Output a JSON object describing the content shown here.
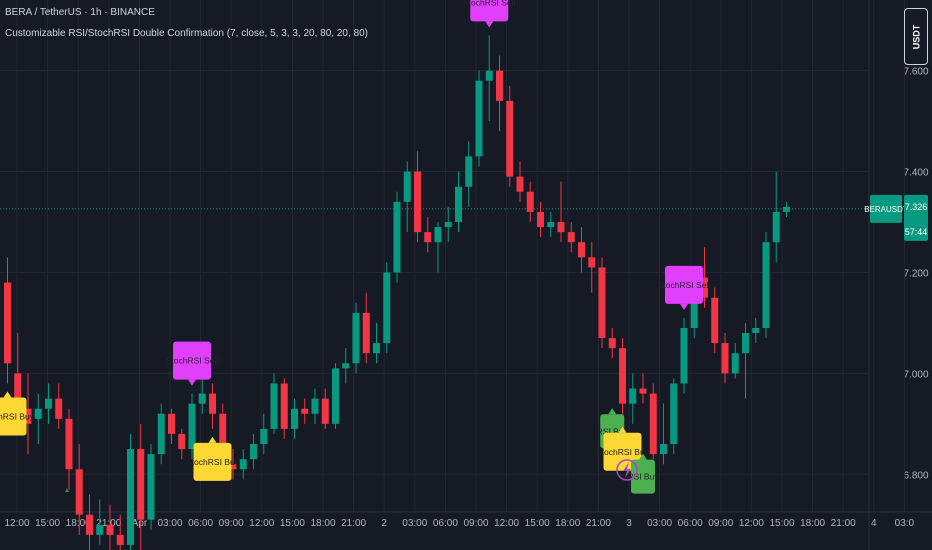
{
  "header": {
    "symbol_line": "BERA / TetherUS · 1h · BINANCE",
    "indicator_line": "Customizable RSI/StochRSI Double Confirmation (7, close, 5, 3, 3, 20, 80, 20, 80)"
  },
  "currency_button": "USDT",
  "price_label": {
    "symbol": "BERAUSDT",
    "price": "7.326",
    "countdown": "57:44"
  },
  "colors": {
    "background": "#161a25",
    "grid": "#232733",
    "up": "#089981",
    "down": "#f23645",
    "sell_label": "#e040fb",
    "stoch_buy_label": "#fdd835",
    "rsi_buy_label": "#4caf50",
    "axis_text": "#b2b5be"
  },
  "chart_data": {
    "type": "candlestick",
    "ylim": [
      6.65,
      7.74
    ],
    "y_ticks": [
      "7.600",
      "7.400",
      "7.200",
      "7.000",
      "6.800"
    ],
    "y_tick_values": [
      7.6,
      7.4,
      7.2,
      7.0,
      6.8
    ],
    "x_ticks": [
      "12:00",
      "15:00",
      "18:00",
      "21:00",
      "Apr",
      "03:00",
      "06:00",
      "09:00",
      "12:00",
      "15:00",
      "18:00",
      "21:00",
      "2",
      "03:00",
      "06:00",
      "09:00",
      "12:00",
      "15:00",
      "18:00",
      "21:00",
      "3",
      "03:00",
      "06:00",
      "09:00",
      "12:00",
      "15:00",
      "18:00",
      "21:00",
      "4",
      "03:0"
    ],
    "first_x_tick_index": 1,
    "current_price": 7.326,
    "candles": [
      {
        "o": 7.18,
        "h": 7.23,
        "l": 6.98,
        "c": 7.02
      },
      {
        "o": 7.0,
        "h": 7.08,
        "l": 6.9,
        "c": 6.93
      },
      {
        "o": 6.93,
        "h": 7.0,
        "l": 6.84,
        "c": 6.9
      },
      {
        "o": 6.91,
        "h": 6.96,
        "l": 6.86,
        "c": 6.93
      },
      {
        "o": 6.93,
        "h": 6.98,
        "l": 6.9,
        "c": 6.95
      },
      {
        "o": 6.95,
        "h": 6.98,
        "l": 6.89,
        "c": 6.91
      },
      {
        "o": 6.91,
        "h": 6.93,
        "l": 6.77,
        "c": 6.81
      },
      {
        "o": 6.81,
        "h": 6.86,
        "l": 6.68,
        "c": 6.72
      },
      {
        "o": 6.72,
        "h": 6.76,
        "l": 6.63,
        "c": 6.68
      },
      {
        "o": 6.68,
        "h": 6.75,
        "l": 6.66,
        "c": 6.7
      },
      {
        "o": 6.7,
        "h": 6.74,
        "l": 6.64,
        "c": 6.68
      },
      {
        "o": 6.68,
        "h": 6.72,
        "l": 6.63,
        "c": 6.66
      },
      {
        "o": 6.66,
        "h": 6.88,
        "l": 6.64,
        "c": 6.85
      },
      {
        "o": 6.85,
        "h": 6.9,
        "l": 6.6,
        "c": 6.71
      },
      {
        "o": 6.71,
        "h": 6.86,
        "l": 6.69,
        "c": 6.84
      },
      {
        "o": 6.84,
        "h": 6.94,
        "l": 6.82,
        "c": 6.92
      },
      {
        "o": 6.92,
        "h": 6.93,
        "l": 6.86,
        "c": 6.88
      },
      {
        "o": 6.88,
        "h": 6.89,
        "l": 6.83,
        "c": 6.85
      },
      {
        "o": 6.85,
        "h": 6.96,
        "l": 6.83,
        "c": 6.94
      },
      {
        "o": 6.94,
        "h": 7.01,
        "l": 6.92,
        "c": 6.96
      },
      {
        "o": 6.96,
        "h": 6.98,
        "l": 6.89,
        "c": 6.92
      },
      {
        "o": 6.92,
        "h": 6.94,
        "l": 6.81,
        "c": 6.82
      },
      {
        "o": 6.82,
        "h": 6.85,
        "l": 6.79,
        "c": 6.81
      },
      {
        "o": 6.81,
        "h": 6.85,
        "l": 6.79,
        "c": 6.83
      },
      {
        "o": 6.83,
        "h": 6.88,
        "l": 6.81,
        "c": 6.86
      },
      {
        "o": 6.86,
        "h": 6.92,
        "l": 6.84,
        "c": 6.89
      },
      {
        "o": 6.89,
        "h": 7.0,
        "l": 6.88,
        "c": 6.98
      },
      {
        "o": 6.98,
        "h": 6.99,
        "l": 6.87,
        "c": 6.89
      },
      {
        "o": 6.89,
        "h": 6.95,
        "l": 6.87,
        "c": 6.93
      },
      {
        "o": 6.93,
        "h": 6.95,
        "l": 6.9,
        "c": 6.92
      },
      {
        "o": 6.92,
        "h": 6.97,
        "l": 6.9,
        "c": 6.95
      },
      {
        "o": 6.95,
        "h": 6.97,
        "l": 6.89,
        "c": 6.9
      },
      {
        "o": 6.9,
        "h": 7.02,
        "l": 6.89,
        "c": 7.01
      },
      {
        "o": 7.01,
        "h": 7.05,
        "l": 6.98,
        "c": 7.02
      },
      {
        "o": 7.02,
        "h": 7.14,
        "l": 7.0,
        "c": 7.12
      },
      {
        "o": 7.12,
        "h": 7.16,
        "l": 7.02,
        "c": 7.04
      },
      {
        "o": 7.04,
        "h": 7.1,
        "l": 7.02,
        "c": 7.06
      },
      {
        "o": 7.06,
        "h": 7.22,
        "l": 7.04,
        "c": 7.2
      },
      {
        "o": 7.2,
        "h": 7.36,
        "l": 7.18,
        "c": 7.34
      },
      {
        "o": 7.34,
        "h": 7.42,
        "l": 7.28,
        "c": 7.4
      },
      {
        "o": 7.4,
        "h": 7.44,
        "l": 7.26,
        "c": 7.28
      },
      {
        "o": 7.28,
        "h": 7.31,
        "l": 7.24,
        "c": 7.26
      },
      {
        "o": 7.26,
        "h": 7.3,
        "l": 7.2,
        "c": 7.29
      },
      {
        "o": 7.29,
        "h": 7.33,
        "l": 7.26,
        "c": 7.3
      },
      {
        "o": 7.3,
        "h": 7.4,
        "l": 7.28,
        "c": 7.37
      },
      {
        "o": 7.37,
        "h": 7.46,
        "l": 7.33,
        "c": 7.43
      },
      {
        "o": 7.43,
        "h": 7.6,
        "l": 7.41,
        "c": 7.58
      },
      {
        "o": 7.58,
        "h": 7.67,
        "l": 7.5,
        "c": 7.6
      },
      {
        "o": 7.6,
        "h": 7.63,
        "l": 7.48,
        "c": 7.54
      },
      {
        "o": 7.54,
        "h": 7.57,
        "l": 7.37,
        "c": 7.39
      },
      {
        "o": 7.39,
        "h": 7.42,
        "l": 7.34,
        "c": 7.36
      },
      {
        "o": 7.36,
        "h": 7.38,
        "l": 7.3,
        "c": 7.32
      },
      {
        "o": 7.32,
        "h": 7.34,
        "l": 7.27,
        "c": 7.29
      },
      {
        "o": 7.29,
        "h": 7.32,
        "l": 7.27,
        "c": 7.3
      },
      {
        "o": 7.3,
        "h": 7.38,
        "l": 7.26,
        "c": 7.28
      },
      {
        "o": 7.28,
        "h": 7.3,
        "l": 7.24,
        "c": 7.26
      },
      {
        "o": 7.26,
        "h": 7.29,
        "l": 7.2,
        "c": 7.23
      },
      {
        "o": 7.23,
        "h": 7.26,
        "l": 7.16,
        "c": 7.21
      },
      {
        "o": 7.21,
        "h": 7.23,
        "l": 7.05,
        "c": 7.07
      },
      {
        "o": 7.07,
        "h": 7.09,
        "l": 7.03,
        "c": 7.05
      },
      {
        "o": 7.05,
        "h": 7.07,
        "l": 6.91,
        "c": 6.94
      },
      {
        "o": 6.94,
        "h": 7.0,
        "l": 6.9,
        "c": 6.97
      },
      {
        "o": 6.97,
        "h": 7.0,
        "l": 6.94,
        "c": 6.96
      },
      {
        "o": 6.96,
        "h": 6.98,
        "l": 6.83,
        "c": 6.84
      },
      {
        "o": 6.84,
        "h": 6.94,
        "l": 6.82,
        "c": 6.86
      },
      {
        "o": 6.86,
        "h": 6.99,
        "l": 6.84,
        "c": 6.98
      },
      {
        "o": 6.98,
        "h": 7.11,
        "l": 6.96,
        "c": 7.09
      },
      {
        "o": 7.09,
        "h": 7.21,
        "l": 7.07,
        "c": 7.19
      },
      {
        "o": 7.19,
        "h": 7.25,
        "l": 7.13,
        "c": 7.15
      },
      {
        "o": 7.15,
        "h": 7.17,
        "l": 7.04,
        "c": 7.06
      },
      {
        "o": 7.06,
        "h": 7.08,
        "l": 6.98,
        "c": 7.0
      },
      {
        "o": 7.0,
        "h": 7.06,
        "l": 6.99,
        "c": 7.04
      },
      {
        "o": 7.04,
        "h": 7.1,
        "l": 6.95,
        "c": 7.08
      },
      {
        "o": 7.08,
        "h": 7.11,
        "l": 7.06,
        "c": 7.09
      },
      {
        "o": 7.09,
        "h": 7.28,
        "l": 7.07,
        "c": 7.26
      },
      {
        "o": 7.26,
        "h": 7.4,
        "l": 7.22,
        "c": 7.32
      },
      {
        "o": 7.32,
        "h": 7.34,
        "l": 7.31,
        "c": 7.33
      }
    ],
    "signals": [
      {
        "index": 0,
        "type": "stochrsi_buy",
        "text": "StochRSI Buy"
      },
      {
        "index": 20,
        "type": "stochrsi_buy",
        "text": "StochRSI Buy"
      },
      {
        "index": 18,
        "type": "stochrsi_sell",
        "text": "StochRSI Sell"
      },
      {
        "index": 47,
        "type": "stochrsi_sell",
        "text": "StochRSI Sell"
      },
      {
        "index": 66,
        "type": "stochrsi_sell",
        "text": "StochRSI Sell"
      },
      {
        "index": 59,
        "type": "rsi_buy",
        "text": "RSI Buy"
      },
      {
        "index": 60,
        "type": "stochrsi_buy",
        "text": "StochRSI Buy"
      },
      {
        "index": 62,
        "type": "rsi_buy",
        "text": "RSI Buy"
      }
    ]
  }
}
